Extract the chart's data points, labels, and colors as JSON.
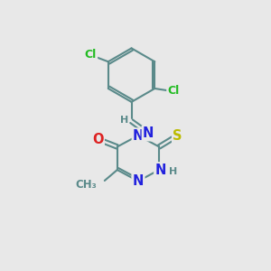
{
  "bg_color": "#e8e8e8",
  "bond_color": "#5a8a8a",
  "bond_width": 1.5,
  "atom_colors": {
    "C": "#5a8a8a",
    "N": "#2222dd",
    "O": "#dd2222",
    "S": "#bbbb00",
    "Cl": "#22bb22",
    "H": "#5a8a8a"
  },
  "font_size": 9.5
}
